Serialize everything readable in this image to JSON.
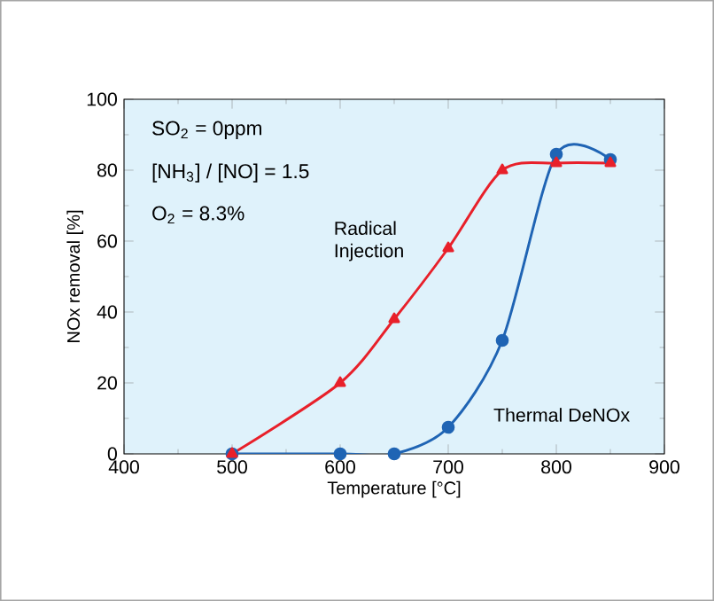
{
  "chart_data": {
    "type": "line",
    "xlabel": "Temperature [°C]",
    "ylabel": "NOx removal [%]",
    "x": [
      500,
      600,
      650,
      700,
      750,
      800,
      850
    ],
    "series": [
      {
        "name": "Radical Injection",
        "color": "#e8202a",
        "marker": "triangle",
        "values": [
          0,
          20,
          38,
          58,
          80,
          82,
          82
        ]
      },
      {
        "name": "Thermal DeNOx",
        "color": "#1f64b4",
        "marker": "circle",
        "values": [
          0,
          0,
          0,
          7.5,
          32,
          84.5,
          83
        ]
      }
    ],
    "xlim": [
      400,
      900
    ],
    "xticks": [
      400,
      500,
      600,
      700,
      800,
      900
    ],
    "ylim": [
      0,
      100
    ],
    "yticks": [
      0,
      20,
      40,
      60,
      80,
      100
    ],
    "grid": false,
    "legend": false,
    "annotations": [
      "SO$_{2}$ = 0ppm",
      "[NH$_{3}$] / [NO] = 1.5",
      "O$_{2}$ = 8.3%"
    ]
  }
}
